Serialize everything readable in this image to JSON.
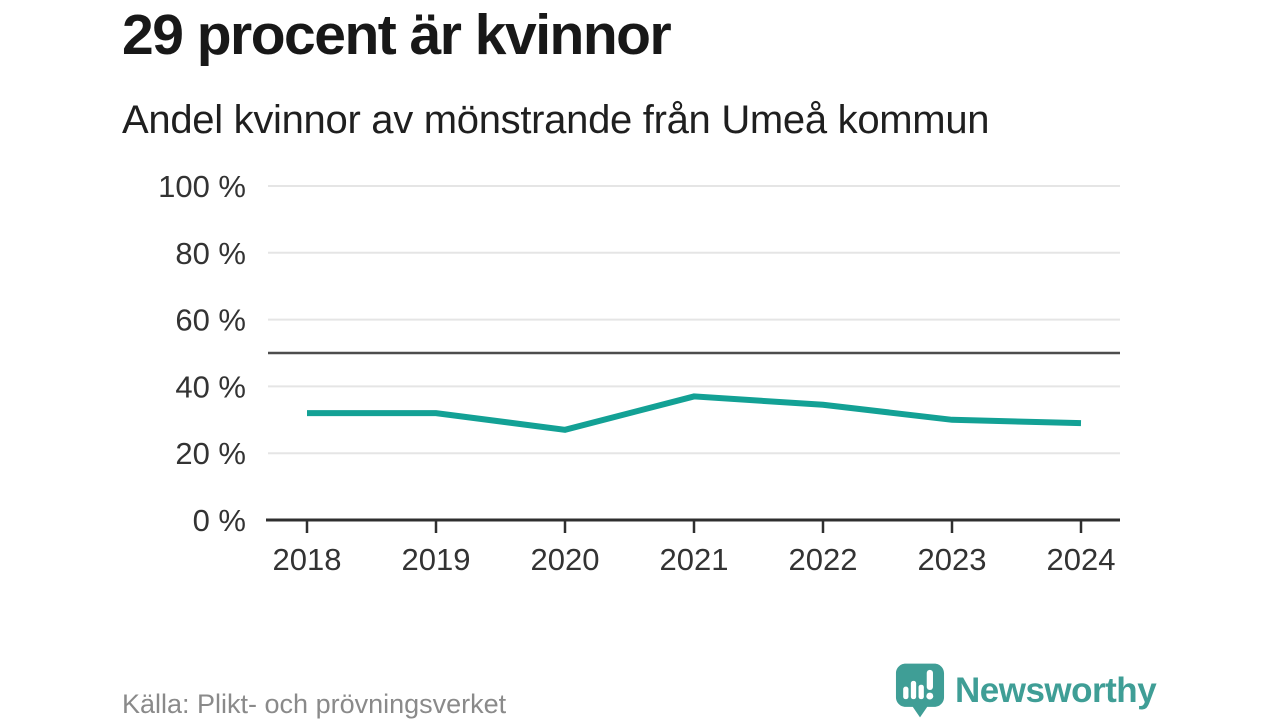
{
  "chart_data": {
    "type": "line",
    "title": "29 procent är kvinnor",
    "subtitle": "Andel kvinnor av mönstrande från Umeå kommun",
    "categories": [
      "2018",
      "2019",
      "2020",
      "2021",
      "2022",
      "2023",
      "2024"
    ],
    "values": [
      32,
      32,
      27,
      37,
      34.5,
      30,
      29
    ],
    "ylim": [
      0,
      100
    ],
    "y_ticks": [
      0,
      20,
      40,
      60,
      80,
      100
    ],
    "y_tick_suffix": " %",
    "reference_line_y": 50,
    "grid": true,
    "legend": "none",
    "line_color": "#13a195",
    "reference_line_color": "#4d4d4d",
    "gridline_color": "#e5e5e5",
    "axis_color": "#2f2f2f",
    "tick_label_color": "#333333"
  },
  "footer": {
    "source": "Källa: Plikt- och prövningsverket",
    "brand": "Newsworthy",
    "brand_color": "#3f9e96"
  }
}
